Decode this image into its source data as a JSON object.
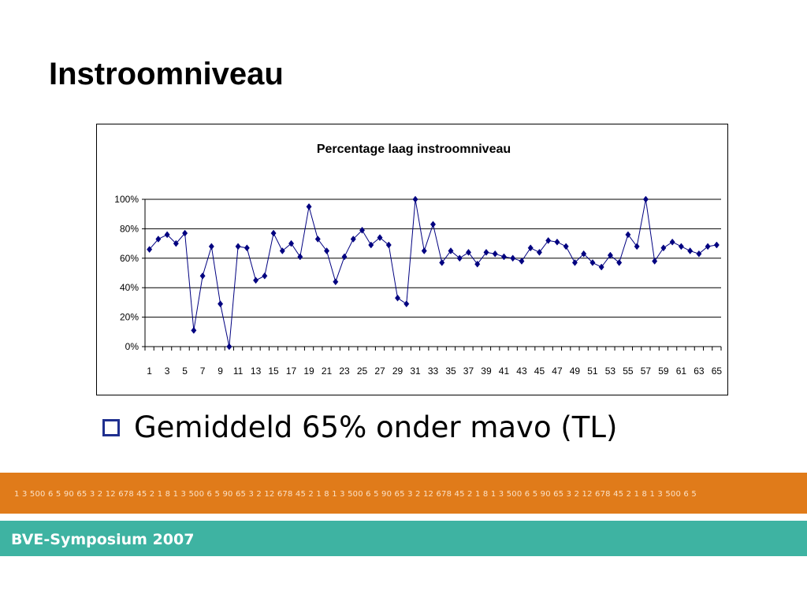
{
  "slide": {
    "title": "Instroomniveau",
    "bullet": "Gemiddeld 65% onder mavo (TL)"
  },
  "footer": {
    "number_strip": "1 3 500 6 5 90 65 3 2 12 678 45 2 1 8 1 3 500 6 5 90 65 3 2 12 678 45 2 1 8 1 3 500 6 5 90 65 3 2 12 678 45 2 1 8 1 3 500 6 5 90 65 3 2 12 678 45 2 1 8 1 3 500 6 5",
    "label": "BVE-Symposium 2007"
  },
  "colors": {
    "line": "#000080",
    "orange_band": "#e07b1a",
    "teal_band": "#3eb3a2",
    "bullet": "#1f2f8f"
  },
  "chart_data": {
    "type": "line",
    "title": "Percentage laag instroomniveau",
    "xlabel": "",
    "ylabel": "",
    "ylim": [
      0,
      100
    ],
    "y_ticks": [
      "0%",
      "20%",
      "40%",
      "60%",
      "80%",
      "100%"
    ],
    "x_tick_labels": [
      "1",
      "3",
      "5",
      "7",
      "9",
      "11",
      "13",
      "15",
      "17",
      "19",
      "21",
      "23",
      "25",
      "27",
      "29",
      "31",
      "33",
      "35",
      "37",
      "39",
      "41",
      "43",
      "45",
      "47",
      "49",
      "51",
      "53",
      "55",
      "57",
      "59",
      "61",
      "63",
      "65"
    ],
    "grid": true,
    "legend": "none",
    "marker": "diamond",
    "x": [
      1,
      2,
      3,
      4,
      5,
      6,
      7,
      8,
      9,
      10,
      11,
      12,
      13,
      14,
      15,
      16,
      17,
      18,
      19,
      20,
      21,
      22,
      23,
      24,
      25,
      26,
      27,
      28,
      29,
      30,
      31,
      32,
      33,
      34,
      35,
      36,
      37,
      38,
      39,
      40,
      41,
      42,
      43,
      44,
      45,
      46,
      47,
      48,
      49,
      50,
      51,
      52,
      53,
      54,
      55,
      56,
      57,
      58,
      59,
      60,
      61,
      62,
      63,
      64,
      65
    ],
    "values": [
      66,
      73,
      76,
      70,
      77,
      11,
      48,
      68,
      29,
      0,
      68,
      67,
      45,
      48,
      77,
      65,
      70,
      61,
      95,
      73,
      65,
      44,
      61,
      73,
      79,
      69,
      74,
      69,
      33,
      29,
      100,
      65,
      83,
      57,
      65,
      60,
      64,
      56,
      64,
      63,
      61,
      60,
      58,
      67,
      64,
      72,
      71,
      68,
      57,
      63,
      57,
      54,
      62,
      57,
      76,
      68,
      100,
      58,
      67,
      71,
      68,
      65,
      63,
      68,
      69
    ]
  }
}
